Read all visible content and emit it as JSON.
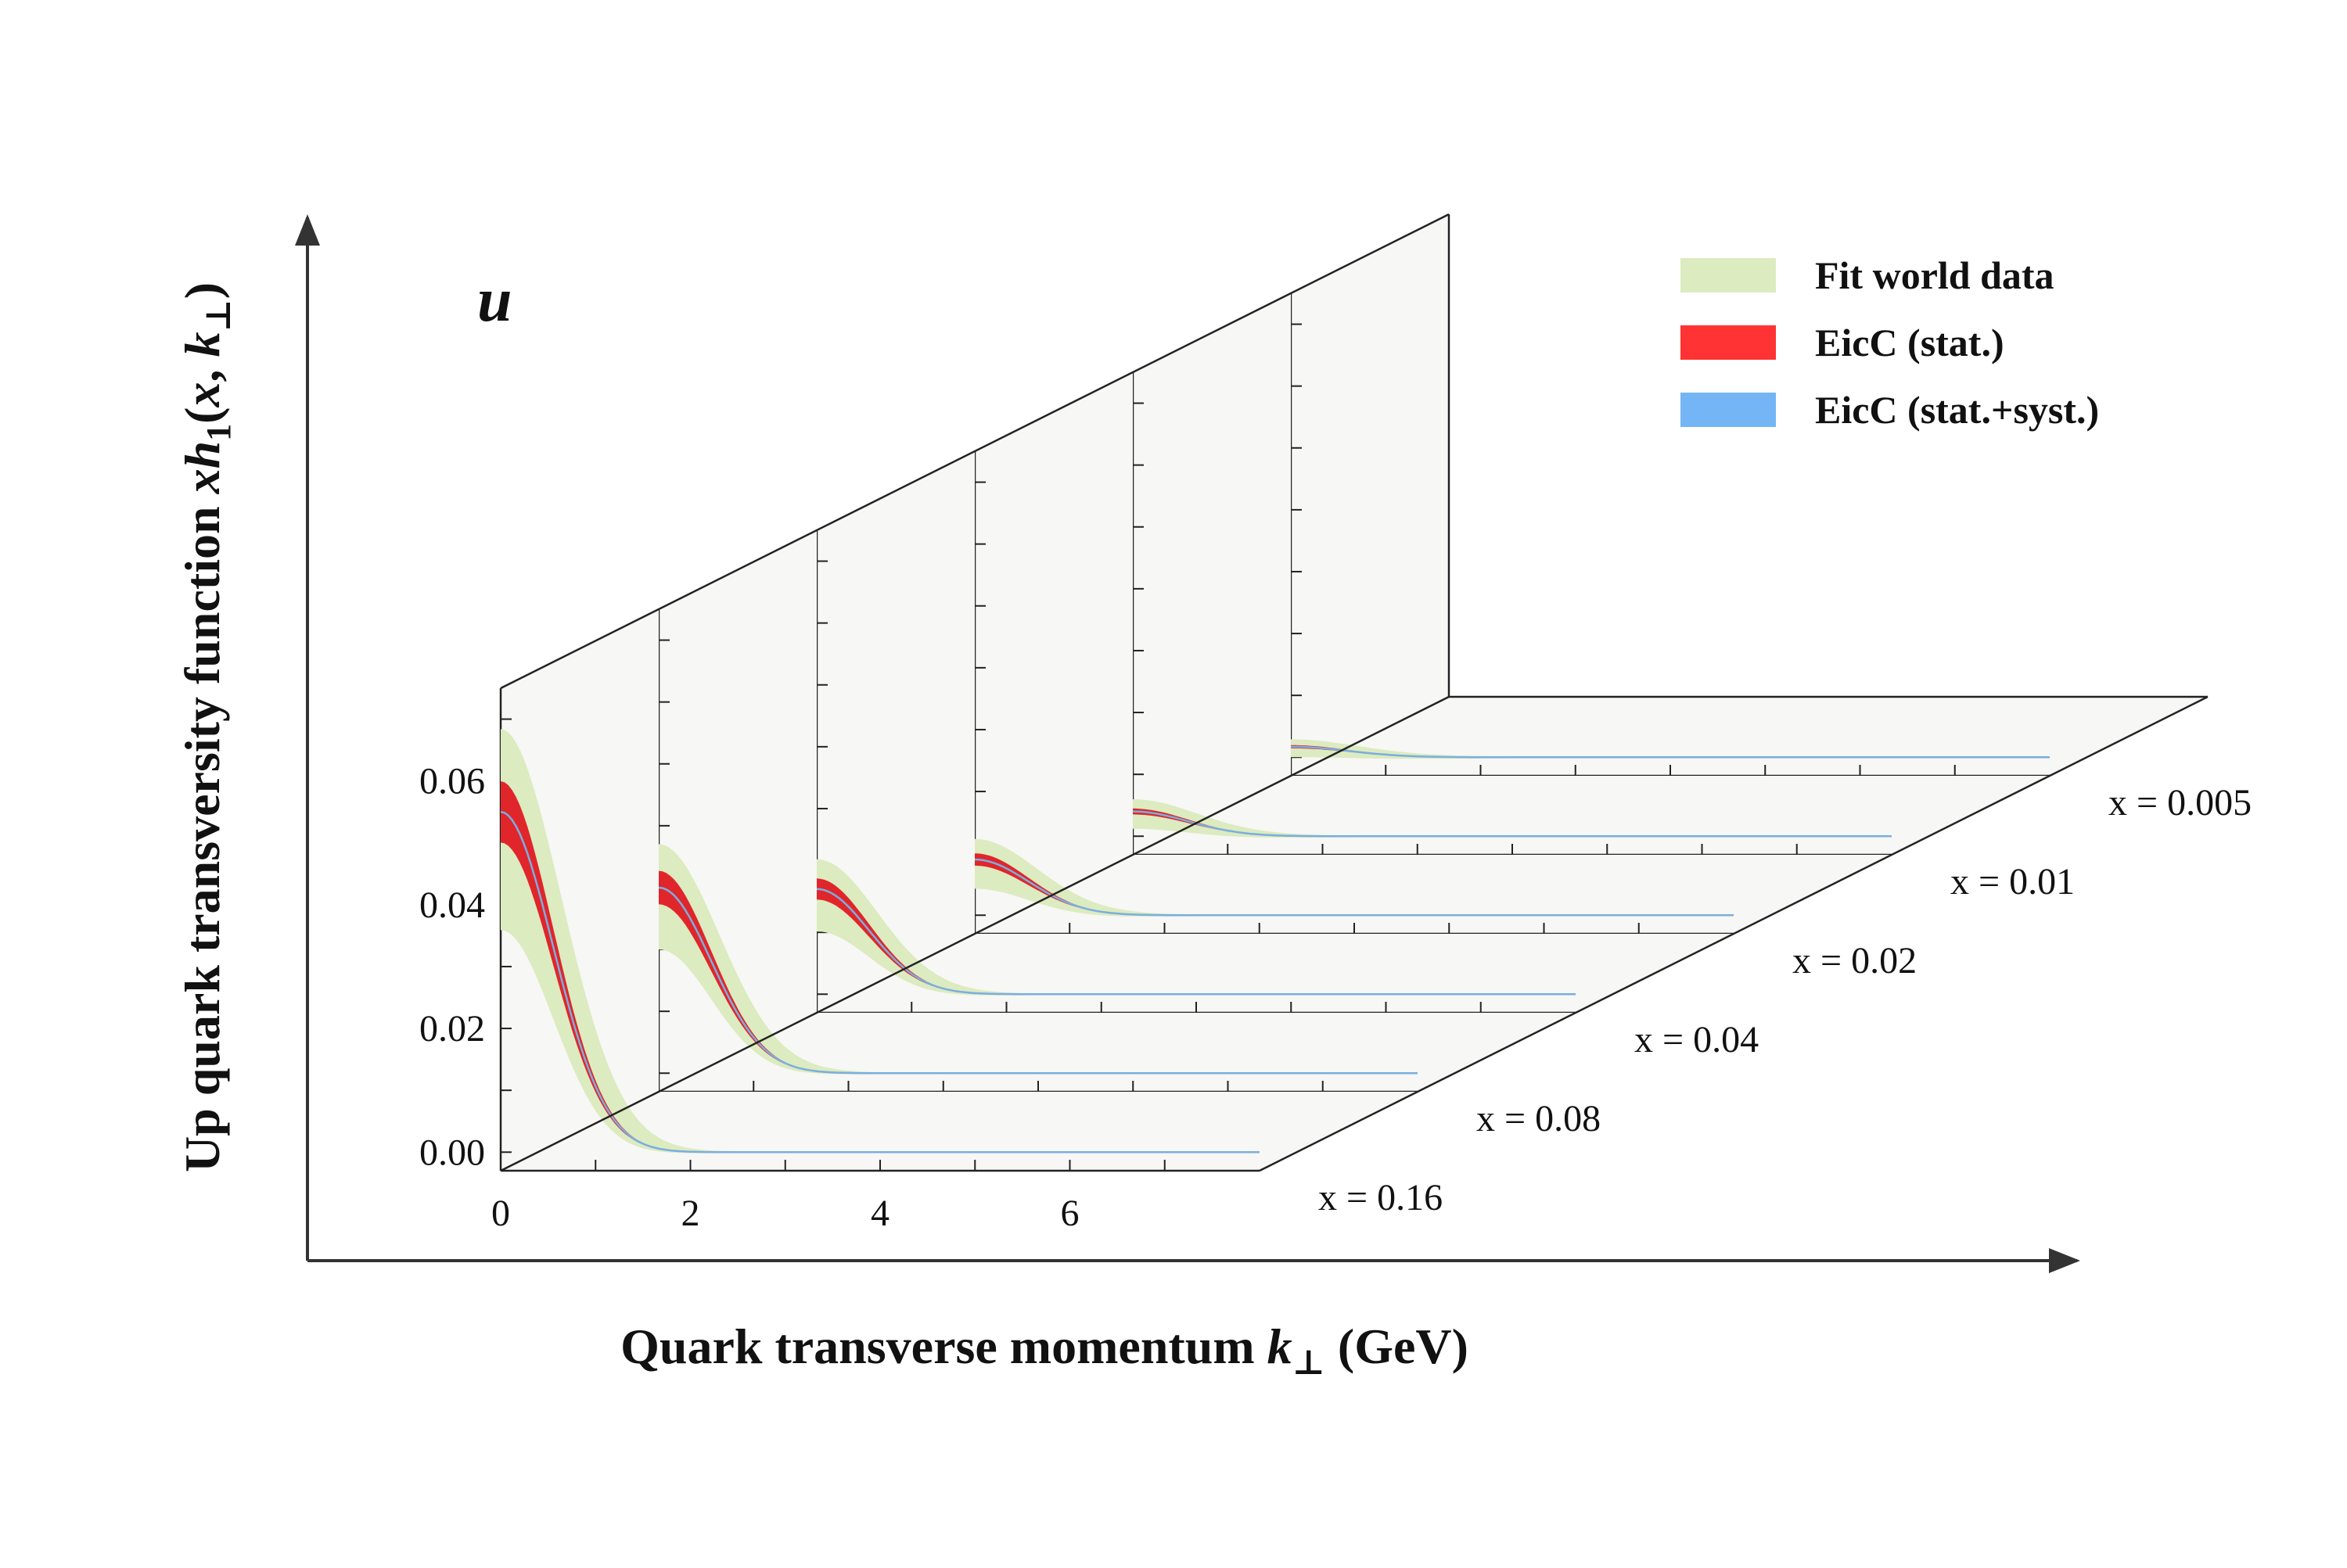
{
  "chart_data": {
    "type": "line",
    "flavor": "u",
    "xlabel": {
      "pre": "Quark transverse momentum ",
      "var": "k",
      "sub": "⊥",
      "post": " (GeV)"
    },
    "ylabel": {
      "pre": "Up quark transversity function ",
      "var1": "xh",
      "sub1": "1",
      "mid": "(",
      "var2": "x",
      "comma": ", ",
      "var3": "k",
      "sub3": "⊥",
      "post": ")"
    },
    "x_ticks": [
      "0",
      "2",
      "4",
      "6"
    ],
    "y_ticks": [
      "0.00",
      "0.02",
      "0.04",
      "0.06"
    ],
    "xlim": [
      0,
      8
    ],
    "ylim": [
      -0.003,
      0.075
    ],
    "legend": [
      {
        "label": "Fit world data",
        "color": "#dcebc0"
      },
      {
        "label": "EicC (stat.)",
        "color": "#ff3333"
      },
      {
        "label": "EicC (stat.+syst.)",
        "color": "#74b6f5"
      }
    ],
    "slices": [
      {
        "label": "x = 0.16",
        "peak": 0.055,
        "width": 0.78,
        "band_frac": 0.34,
        "stat_frac": 0.09
      },
      {
        "label": "x = 0.08",
        "peak": 0.03,
        "width": 0.78,
        "band_frac": 0.32,
        "stat_frac": 0.09
      },
      {
        "label": "x = 0.04",
        "peak": 0.017,
        "width": 0.78,
        "band_frac": 0.38,
        "stat_frac": 0.1
      },
      {
        "label": "x = 0.02",
        "peak": 0.009,
        "width": 0.8,
        "band_frac": 0.48,
        "stat_frac": 0.11
      },
      {
        "label": "x = 0.01",
        "peak": 0.004,
        "width": 0.82,
        "band_frac": 0.6,
        "stat_frac": 0.12
      },
      {
        "label": "x = 0.005",
        "peak": 0.0017,
        "width": 0.85,
        "band_frac": 0.75,
        "stat_frac": 0.15
      }
    ],
    "colors": {
      "panel": "#f7f7f5",
      "frame": "#222222",
      "world_band": "#dcebc0",
      "stat_band": "#e0262b",
      "syst_line": "#7aaee0"
    }
  }
}
